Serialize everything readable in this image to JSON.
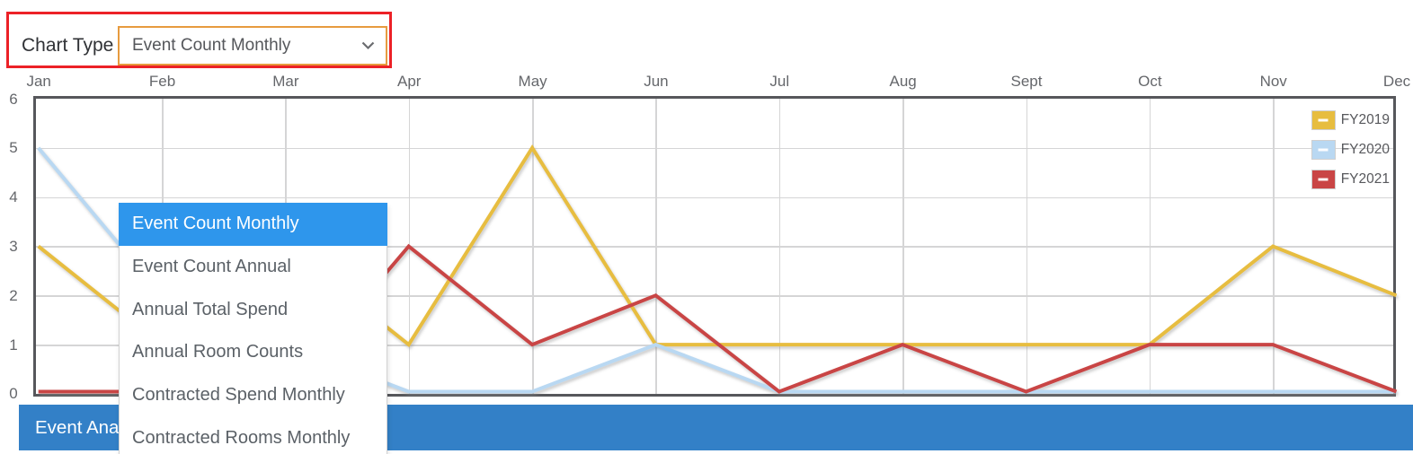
{
  "chart_type_control": {
    "label": "Chart Type",
    "selected_value": "Event Count Monthly",
    "options": [
      "Event Count Monthly",
      "Event Count Annual",
      "Annual Total Spend",
      "Annual Room Counts",
      "Contracted Spend Monthly",
      "Contracted Rooms Monthly"
    ],
    "highlighted_option": "Event Count Monthly"
  },
  "chart_data": {
    "type": "line",
    "categories": [
      "Jan",
      "Feb",
      "Mar",
      "Apr",
      "May",
      "Jun",
      "Jul",
      "Aug",
      "Sept",
      "Oct",
      "Nov",
      "Dec"
    ],
    "x_axis_position": "top",
    "series": [
      {
        "name": "FY2019",
        "color": "#e7bd3f",
        "values": [
          3,
          1,
          3,
          1,
          5,
          1,
          1,
          1,
          1,
          1,
          3,
          2
        ]
      },
      {
        "name": "FY2020",
        "color": "#b9d8f2",
        "values": [
          5,
          2,
          1,
          0,
          0,
          1,
          0,
          0,
          0,
          0,
          0,
          0
        ]
      },
      {
        "name": "FY2021",
        "color": "#c94545",
        "values": [
          0,
          0,
          0,
          3,
          1,
          2,
          0,
          1,
          0,
          1,
          1,
          0
        ]
      }
    ],
    "ylim": [
      0,
      6
    ],
    "yticks": [
      6,
      5,
      4,
      3,
      2,
      1,
      0
    ],
    "grid": true,
    "legend_position": "top-right",
    "legend": [
      "FY2019",
      "FY2020",
      "FY2021"
    ]
  },
  "footer": {
    "label": "Event Analysis"
  },
  "annotation": {
    "type": "red-rectangle-highlight",
    "color": "#ec2127"
  },
  "colors": {
    "annotation_red": "#ec2127",
    "select_border_orange": "#e79b3f",
    "menu_highlight_blue": "#2e96ec",
    "footer_bar_blue": "#3380c7",
    "plot_border_gray": "#56575b",
    "gridline_gray": "#d5d5d6"
  }
}
